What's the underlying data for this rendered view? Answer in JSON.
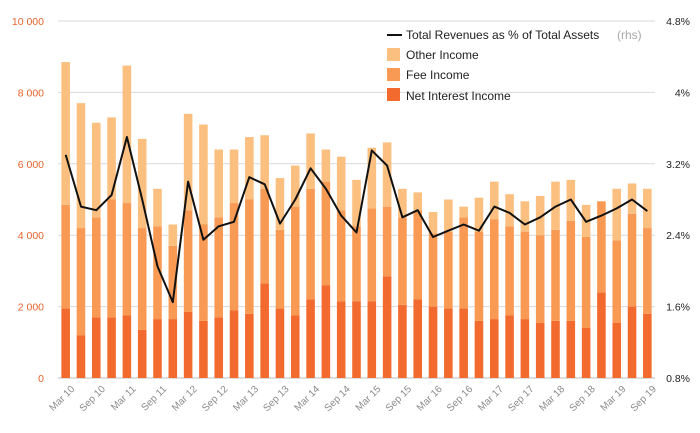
{
  "chart_data": {
    "type": "bar",
    "stacked": true,
    "colors": {
      "net_interest": "#f26a2e",
      "fee": "#f89a54",
      "other": "#fbbf80",
      "line": "#111111",
      "grid": "#d9d9d9",
      "left_axis_text": "#e8622a",
      "right_axis_text": "#222222",
      "x_axis_text": "#8a8a8a"
    },
    "x_tick_labels": [
      "Mar 10",
      "Sep 10",
      "Mar 11",
      "Sep 11",
      "Mar 12",
      "Sep 12",
      "Mar 13",
      "Sep 13",
      "Mar 14",
      "Sep 14",
      "Mar 15",
      "Sep 15",
      "Mar 16",
      "Sep 16",
      "Mar 17",
      "Sep 17",
      "Mar 18",
      "Sep 18",
      "Mar 19",
      "Sep 19"
    ],
    "y_left": {
      "ticks": [
        0,
        2000,
        4000,
        6000,
        8000,
        10000
      ],
      "tick_labels": [
        "0",
        "2 000",
        "4 000",
        "6 000",
        "8 000",
        "10 000"
      ],
      "range": [
        0,
        10000
      ]
    },
    "y_right": {
      "ticks": [
        0.8,
        1.6,
        2.4,
        3.2,
        4.0,
        4.8
      ],
      "tick_labels": [
        "0.8%",
        "1.6%",
        "2.4%",
        "3.2%",
        "4%",
        "4.8%"
      ],
      "range": [
        0.8,
        4.8
      ]
    },
    "grid": true,
    "legend_position": "top-right",
    "legend": {
      "line_label": "Total Revenues as % of Total Assets",
      "line_note": "(rhs)",
      "other_label": "Other Income",
      "fee_label": "Fee Income",
      "net_label": "Net Interest Income"
    },
    "series": [
      {
        "name": "Net Interest Income",
        "values": [
          1950,
          1200,
          1700,
          1700,
          1750,
          1350,
          1650,
          1650,
          1850,
          1600,
          1700,
          1900,
          1800,
          2650,
          1950,
          1750,
          2200,
          2600,
          2150,
          2150,
          2150,
          2850,
          2050,
          2200,
          2000,
          1950,
          1950,
          1600,
          1650,
          1750,
          1650,
          1550,
          1600,
          1600,
          1400,
          2400,
          1550,
          2000,
          1800
        ]
      },
      {
        "name": "Fee Income",
        "values": [
          2900,
          3000,
          2800,
          3300,
          3150,
          2850,
          2600,
          2050,
          2850,
          2700,
          2800,
          3000,
          3200,
          2650,
          2200,
          3050,
          3100,
          2900,
          2550,
          2100,
          2600,
          1950,
          2450,
          2500,
          2050,
          2150,
          2550,
          2500,
          2800,
          2500,
          2450,
          2450,
          2550,
          2800,
          2550,
          2550,
          2300,
          2600,
          2400
        ]
      },
      {
        "name": "Other Income",
        "values": [
          4000,
          3500,
          2650,
          2300,
          3850,
          2500,
          1050,
          600,
          2700,
          2800,
          1900,
          1500,
          1750,
          1500,
          1450,
          1150,
          1550,
          900,
          1500,
          1300,
          1700,
          1800,
          800,
          500,
          600,
          900,
          300,
          950,
          1050,
          900,
          850,
          1100,
          1350,
          1150,
          900,
          0,
          1450,
          850,
          1100
        ]
      },
      {
        "name": "Total Revenues as % of Total Assets",
        "axis": "right",
        "values": [
          3.3,
          2.72,
          2.68,
          2.85,
          3.5,
          2.8,
          2.05,
          1.65,
          3.0,
          2.35,
          2.5,
          2.55,
          3.05,
          2.97,
          2.53,
          2.8,
          3.15,
          2.92,
          2.62,
          2.43,
          3.35,
          3.18,
          2.6,
          2.68,
          2.38,
          2.45,
          2.52,
          2.45,
          2.72,
          2.65,
          2.52,
          2.6,
          2.72,
          2.8,
          2.55,
          2.62,
          2.7,
          2.8,
          2.67
        ]
      }
    ]
  }
}
